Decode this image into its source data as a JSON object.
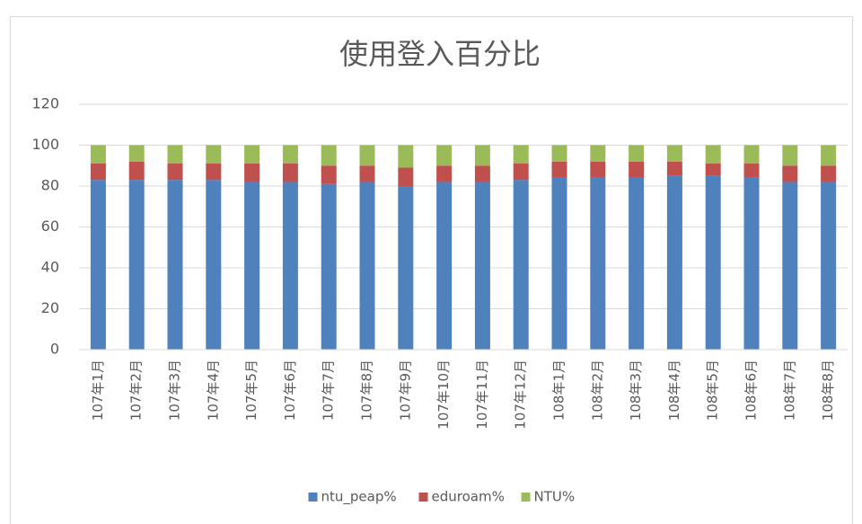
{
  "chart_data": {
    "type": "stacked_bar",
    "title": "使用登入百分比",
    "categories": [
      "107年1月",
      "107年2月",
      "107年3月",
      "107年4月",
      "107年5月",
      "107年6月",
      "107年7月",
      "107年8月",
      "107年9月",
      "107年10月",
      "107年11月",
      "107年12月",
      "108年1月",
      "108年2月",
      "108年3月",
      "108年4月",
      "108年5月",
      "108年6月",
      "108年7月",
      "108年8月"
    ],
    "series": [
      {
        "name": "ntu_peap%",
        "color": "#4f81bd",
        "values": [
          83,
          83,
          83,
          83,
          82,
          82,
          81,
          82,
          80,
          82,
          82,
          83,
          84,
          84,
          84,
          85,
          85,
          84,
          82,
          82
        ]
      },
      {
        "name": "eduroam%",
        "color": "#c0504d",
        "values": [
          8,
          9,
          8,
          8,
          9,
          9,
          9,
          8,
          9,
          8,
          8,
          8,
          8,
          8,
          8,
          7,
          6,
          7,
          8,
          8
        ]
      },
      {
        "name": "NTU%",
        "color": "#9bbb59",
        "values": [
          9,
          8,
          9,
          9,
          9,
          9,
          10,
          10,
          11,
          10,
          10,
          9,
          8,
          8,
          8,
          8,
          9,
          9,
          10,
          10
        ]
      }
    ],
    "ylim": [
      0,
      120
    ],
    "yticks": [
      0,
      20,
      40,
      60,
      80,
      100,
      120
    ],
    "grid": true,
    "legend": "bottom"
  }
}
